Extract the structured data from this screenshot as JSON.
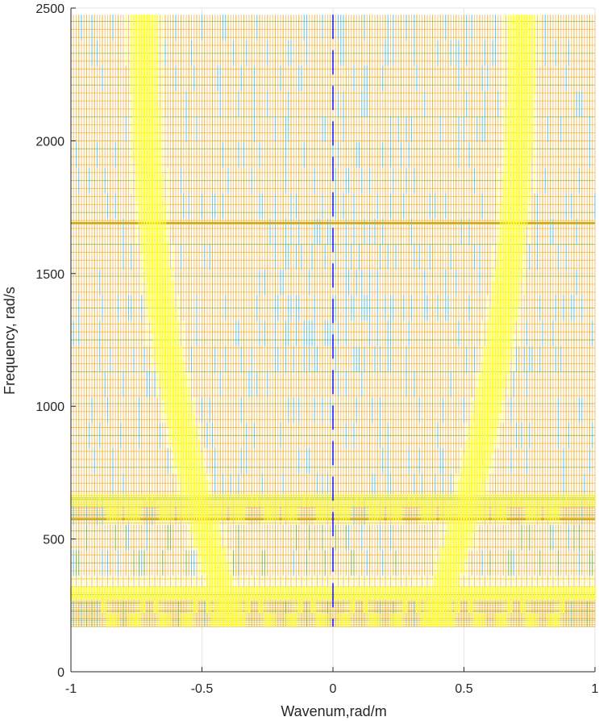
{
  "chart_data": {
    "type": "heatmap",
    "title": "",
    "xlabel": "Wavenum,rad/m",
    "ylabel": "Frequency, rad/s",
    "xlim": [
      -1,
      1
    ],
    "ylim": [
      0,
      2500
    ],
    "xticks": [
      -1,
      -0.5,
      0,
      0.5,
      1
    ],
    "xtick_labels": [
      "-1",
      "-0.5",
      "0",
      "0.5",
      "1"
    ],
    "yticks": [
      0,
      500,
      1000,
      1500,
      2000,
      2500
    ],
    "ytick_labels": [
      "0",
      "500",
      "1000",
      "1500",
      "2000",
      "2500"
    ],
    "grid": true,
    "mesh": {
      "x_step": 0.01,
      "y_min": 170,
      "y_max": 2475,
      "dense_bands": [
        [
          170,
          300
        ],
        [
          575,
          665
        ]
      ],
      "highlight_rows": [
        575,
        1690
      ],
      "colormap": [
        "#0072bd",
        "#4dbeee",
        "#77ac30",
        "#edb120",
        "#f5c070",
        "#ffff33"
      ]
    },
    "colors": {
      "background": "#ffffff",
      "axis": "#262626",
      "grid": "#e6e6e6",
      "center_line": "#0000ff"
    }
  }
}
